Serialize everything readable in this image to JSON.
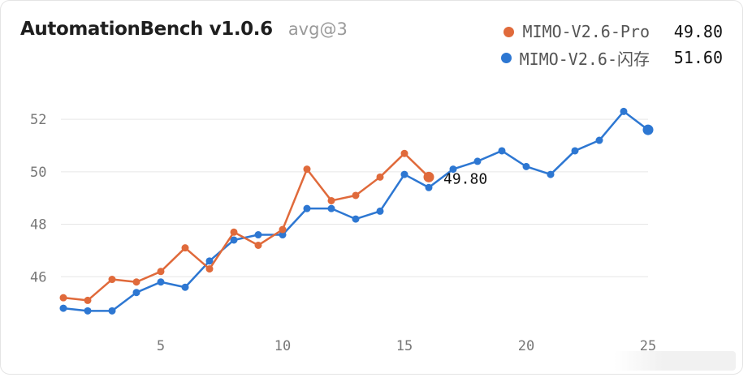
{
  "header": {
    "title": "AutomationBench v1.0.6",
    "subtitle": "avg@3"
  },
  "legend": [
    {
      "name": "MIMO-V2.6-Pro",
      "value": "49.80",
      "color": "#e06a3b"
    },
    {
      "name": "MIMO-V2.6-闪存",
      "value": "51.60",
      "color": "#2d77d2"
    }
  ],
  "chart_data": {
    "type": "line",
    "xticks": [
      5,
      10,
      15,
      20,
      25
    ],
    "yticks": [
      46,
      48,
      50,
      52
    ],
    "xlim": [
      1,
      25
    ],
    "ylim": [
      44.0,
      52.9
    ],
    "grid": true,
    "legend_position": "top-right",
    "series": [
      {
        "name": "MIMO-V2.6-Pro",
        "color": "#e06a3b",
        "x": [
          1,
          2,
          3,
          4,
          5,
          6,
          7,
          8,
          9,
          10,
          11,
          12,
          13,
          14,
          15,
          16
        ],
        "values": [
          45.2,
          45.1,
          45.9,
          45.8,
          46.2,
          47.1,
          46.3,
          47.7,
          47.2,
          47.8,
          50.1,
          48.9,
          49.1,
          49.8,
          50.7,
          49.8
        ],
        "end_label": "49.80"
      },
      {
        "name": "MIMO-V2.6-闪存",
        "color": "#2d77d2",
        "x": [
          1,
          2,
          3,
          4,
          5,
          6,
          7,
          8,
          9,
          10,
          11,
          12,
          13,
          14,
          15,
          16,
          17,
          18,
          19,
          20,
          21,
          22,
          23,
          24,
          25
        ],
        "values": [
          44.8,
          44.7,
          44.7,
          45.4,
          45.8,
          45.6,
          46.6,
          47.4,
          47.6,
          47.6,
          48.6,
          48.6,
          48.2,
          48.5,
          49.9,
          49.4,
          50.1,
          50.4,
          50.8,
          50.2,
          49.9,
          50.8,
          51.2,
          52.3,
          51.6
        ]
      }
    ]
  }
}
